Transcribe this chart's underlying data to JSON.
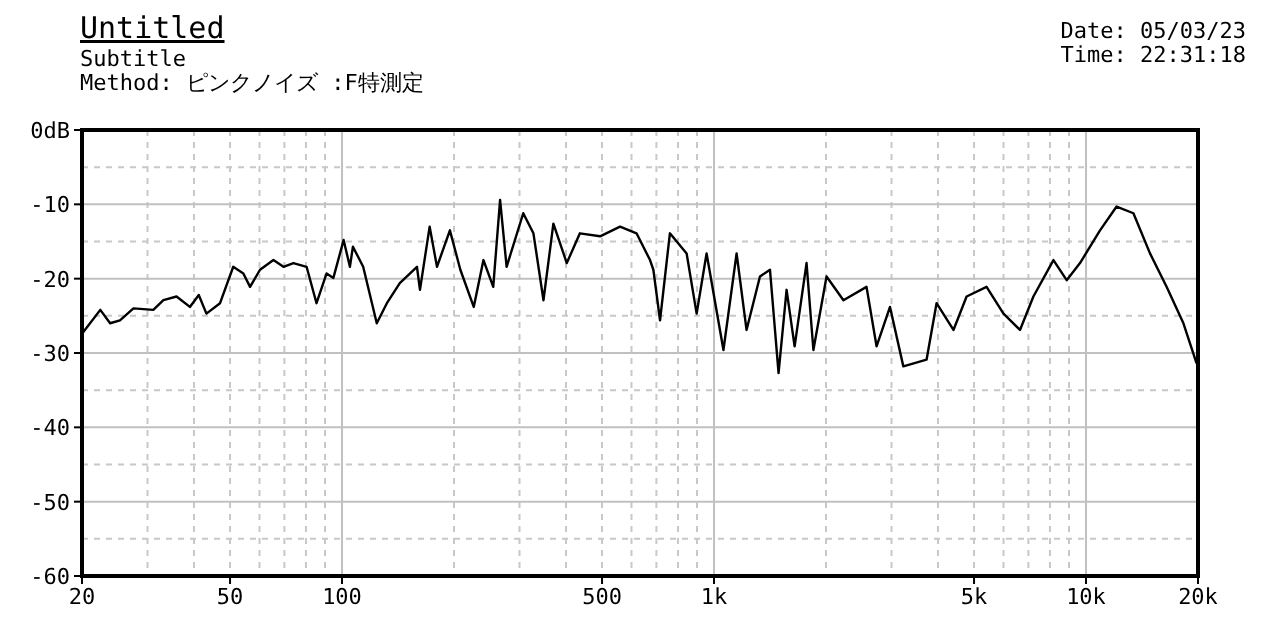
{
  "chart_data": {
    "type": "line",
    "title": "Untitled",
    "subtitle": "Subtitle",
    "annotations": [
      "Method: ピンクノイズ :F特測定",
      "Date: 05/03/23",
      "Time: 22:31:18"
    ],
    "log": "x",
    "grid": true,
    "marker": "none",
    "line_style": "solid",
    "xlim": [
      20,
      20000
    ],
    "ylim": [
      -60,
      0
    ],
    "xticks": [
      20,
      50,
      100,
      500,
      {
        "value": 1000,
        "label": "1k"
      },
      {
        "value": 5000,
        "label": "5k"
      },
      {
        "value": 10000,
        "label": "10k"
      },
      {
        "value": 20000,
        "label": "20k"
      }
    ],
    "yticks": [
      {
        "value": 0,
        "label": "0dB"
      },
      -10,
      -20,
      -30,
      -40,
      -50,
      -60
    ],
    "series": [
      {
        "color": "#000000",
        "x": [
          20,
          22.4,
          23.8,
          25.3,
          27.5,
          31.1,
          33.1,
          35.9,
          39,
          41.2,
          43.2,
          47,
          51,
          54.3,
          56.6,
          60.2,
          65.4,
          69.6,
          74,
          80.3,
          85.4,
          90.9,
          94.8,
          101,
          105,
          107,
          114,
          124,
          132,
          143,
          159,
          162,
          172,
          180,
          195,
          208,
          226,
          240,
          255,
          266,
          277,
          307,
          327,
          348,
          370,
          402,
          436,
          494,
          559,
          619,
          673,
          687,
          716,
          761,
          844,
          898,
          955,
          1060,
          1150,
          1223,
          1329,
          1414,
          1491,
          1567,
          1647,
          1773,
          1850,
          2007,
          2228,
          2570,
          2735,
          2972,
          3228,
          3727,
          3965,
          4402,
          4775,
          5404,
          6000,
          6646,
          7220,
          8174,
          8872,
          9636,
          10906,
          12084,
          13410,
          14860,
          16468,
          18274,
          19826
        ],
        "values": [
          -27.4,
          -24.2,
          -26,
          -25.6,
          -24,
          -24.2,
          -22.9,
          -22.4,
          -23.8,
          -22.2,
          -24.7,
          -23.3,
          -18.4,
          -19.3,
          -21.1,
          -18.8,
          -17.5,
          -18.4,
          -17.9,
          -18.4,
          -23.3,
          -19.3,
          -19.9,
          -14.8,
          -18.4,
          -15.7,
          -18.4,
          -26,
          -23.3,
          -20.6,
          -18.4,
          -21.5,
          -13,
          -18.4,
          -13.5,
          -18.8,
          -23.8,
          -17.5,
          -21.1,
          -9.4,
          -18.4,
          -11.2,
          -13.9,
          -22.9,
          -12.6,
          -17.9,
          -13.9,
          -14.3,
          -13,
          -13.9,
          -17.5,
          -18.8,
          -25.6,
          -13.9,
          -16.6,
          -24.7,
          -16.6,
          -29.6,
          -16.6,
          -26.9,
          -19.7,
          -18.8,
          -32.7,
          -21.5,
          -29.1,
          -17.9,
          -29.6,
          -19.7,
          -22.9,
          -21.1,
          -29.1,
          -23.8,
          -31.8,
          -30.9,
          -23.3,
          -26.9,
          -22.4,
          -21.1,
          -24.7,
          -26.9,
          -22.4,
          -17.5,
          -20.2,
          -17.9,
          -13.5,
          -10.3,
          -11.2,
          -16.6,
          -21.1,
          -26,
          -31.4
        ]
      }
    ]
  }
}
